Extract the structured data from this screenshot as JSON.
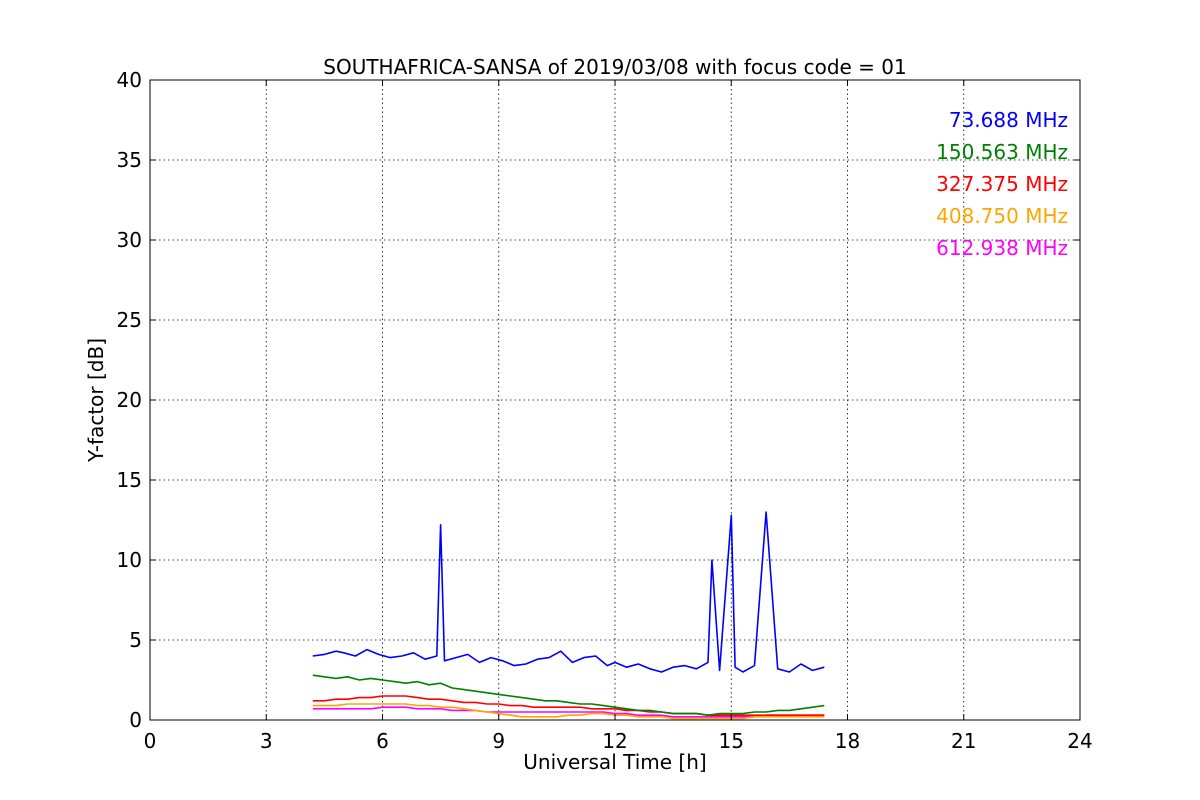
{
  "chart_data": {
    "type": "line",
    "title": "SOUTHAFRICA-SANSA of 2019/03/08 with focus code = 01",
    "xlabel": "Universal Time [h]",
    "ylabel": "Y-factor [dB]",
    "xlim": [
      0,
      24
    ],
    "ylim": [
      0,
      40
    ],
    "xticks": [
      0,
      3,
      6,
      9,
      12,
      15,
      18,
      21,
      24
    ],
    "yticks": [
      0,
      5,
      10,
      15,
      20,
      25,
      30,
      35,
      40
    ],
    "grid": true,
    "legend_position": "top-right",
    "series": [
      {
        "name": "73.688 MHz",
        "color": "#0000ff",
        "x": [
          4.2,
          4.5,
          4.8,
          5.0,
          5.3,
          5.6,
          5.9,
          6.2,
          6.5,
          6.8,
          7.1,
          7.4,
          7.5,
          7.6,
          7.9,
          8.2,
          8.5,
          8.8,
          9.1,
          9.4,
          9.7,
          10.0,
          10.3,
          10.6,
          10.9,
          11.2,
          11.5,
          11.8,
          12.0,
          12.3,
          12.6,
          12.9,
          13.2,
          13.5,
          13.8,
          14.1,
          14.4,
          14.5,
          14.7,
          15.0,
          15.1,
          15.3,
          15.6,
          15.9,
          16.2,
          16.5,
          16.8,
          17.1,
          17.4
        ],
        "values": [
          4.0,
          4.1,
          4.3,
          4.2,
          4.0,
          4.4,
          4.1,
          3.9,
          4.0,
          4.2,
          3.8,
          4.0,
          12.2,
          3.7,
          3.9,
          4.1,
          3.6,
          3.9,
          3.7,
          3.4,
          3.5,
          3.8,
          3.9,
          4.3,
          3.6,
          3.9,
          4.0,
          3.4,
          3.6,
          3.3,
          3.5,
          3.2,
          3.0,
          3.3,
          3.4,
          3.2,
          3.6,
          10.0,
          3.1,
          12.8,
          3.3,
          3.0,
          3.4,
          13.0,
          3.2,
          3.0,
          3.5,
          3.1,
          3.3
        ]
      },
      {
        "name": "150.563 MHz",
        "color": "#008000",
        "x": [
          4.2,
          4.5,
          4.8,
          5.1,
          5.4,
          5.7,
          6.0,
          6.3,
          6.6,
          6.9,
          7.2,
          7.5,
          7.8,
          8.1,
          8.4,
          8.7,
          9.0,
          9.3,
          9.6,
          9.9,
          10.2,
          10.5,
          10.8,
          11.1,
          11.4,
          11.7,
          12.0,
          12.3,
          12.6,
          12.9,
          13.2,
          13.5,
          13.8,
          14.1,
          14.4,
          14.7,
          15.0,
          15.3,
          15.6,
          15.9,
          16.2,
          16.5,
          16.8,
          17.1,
          17.4
        ],
        "values": [
          2.8,
          2.7,
          2.6,
          2.7,
          2.5,
          2.6,
          2.5,
          2.4,
          2.3,
          2.4,
          2.2,
          2.3,
          2.0,
          1.9,
          1.8,
          1.7,
          1.6,
          1.5,
          1.4,
          1.3,
          1.2,
          1.2,
          1.1,
          1.0,
          1.0,
          0.9,
          0.8,
          0.7,
          0.6,
          0.6,
          0.5,
          0.4,
          0.4,
          0.4,
          0.3,
          0.4,
          0.4,
          0.4,
          0.5,
          0.5,
          0.6,
          0.6,
          0.7,
          0.8,
          0.9
        ]
      },
      {
        "name": "327.375 MHz",
        "color": "#ff0000",
        "x": [
          4.2,
          4.5,
          4.8,
          5.1,
          5.4,
          5.7,
          6.0,
          6.3,
          6.6,
          6.9,
          7.2,
          7.5,
          7.8,
          8.1,
          8.4,
          8.7,
          9.0,
          9.3,
          9.6,
          9.9,
          10.2,
          10.5,
          10.8,
          11.1,
          11.4,
          11.7,
          12.0,
          12.3,
          12.6,
          12.9,
          13.2,
          13.5,
          13.8,
          14.1,
          14.4,
          14.7,
          15.0,
          15.3,
          15.6,
          15.9,
          16.2,
          16.5,
          16.8,
          17.1,
          17.4
        ],
        "values": [
          1.2,
          1.2,
          1.3,
          1.3,
          1.4,
          1.4,
          1.5,
          1.5,
          1.5,
          1.4,
          1.3,
          1.3,
          1.2,
          1.1,
          1.1,
          1.0,
          1.0,
          0.9,
          0.9,
          0.8,
          0.8,
          0.8,
          0.8,
          0.8,
          0.7,
          0.7,
          0.7,
          0.6,
          0.6,
          0.5,
          0.5,
          0.4,
          0.4,
          0.4,
          0.3,
          0.3,
          0.3,
          0.3,
          0.3,
          0.3,
          0.3,
          0.3,
          0.3,
          0.3,
          0.3
        ]
      },
      {
        "name": "408.750 MHz",
        "color": "#ffa500",
        "x": [
          4.2,
          4.5,
          4.8,
          5.1,
          5.4,
          5.7,
          6.0,
          6.3,
          6.6,
          6.9,
          7.2,
          7.5,
          7.8,
          8.1,
          8.4,
          8.7,
          9.0,
          9.3,
          9.6,
          9.9,
          10.2,
          10.5,
          10.8,
          11.1,
          11.4,
          11.7,
          12.0,
          12.3,
          12.6,
          12.9,
          13.2,
          13.5,
          13.8,
          14.1,
          14.4,
          14.7,
          15.0,
          15.3,
          15.6,
          15.9,
          16.2,
          16.5,
          16.8,
          17.1,
          17.4
        ],
        "values": [
          0.9,
          0.9,
          0.9,
          1.0,
          1.0,
          1.0,
          1.0,
          1.0,
          1.0,
          0.9,
          0.9,
          0.8,
          0.8,
          0.7,
          0.6,
          0.5,
          0.4,
          0.3,
          0.2,
          0.2,
          0.2,
          0.2,
          0.3,
          0.3,
          0.4,
          0.4,
          0.3,
          0.3,
          0.2,
          0.2,
          0.2,
          0.1,
          0.1,
          0.1,
          0.1,
          0.1,
          0.1,
          0.1,
          0.2,
          0.2,
          0.2,
          0.2,
          0.2,
          0.2,
          0.2
        ]
      },
      {
        "name": "612.938 MHz",
        "color": "#ff00ff",
        "x": [
          4.2,
          4.5,
          4.8,
          5.1,
          5.4,
          5.7,
          6.0,
          6.3,
          6.6,
          6.9,
          7.2,
          7.5,
          7.8,
          8.1,
          8.4,
          8.7,
          9.0,
          9.3,
          9.6,
          9.9,
          10.2,
          10.5,
          10.8,
          11.1,
          11.4,
          11.7,
          12.0,
          12.3,
          12.6,
          12.9,
          13.2,
          13.5,
          13.8,
          14.1,
          14.4,
          14.7,
          15.0,
          15.3,
          15.6,
          15.9,
          16.2,
          16.5,
          16.8,
          17.1,
          17.4
        ],
        "values": [
          0.7,
          0.7,
          0.7,
          0.7,
          0.7,
          0.7,
          0.8,
          0.8,
          0.8,
          0.7,
          0.7,
          0.7,
          0.6,
          0.6,
          0.6,
          0.5,
          0.5,
          0.5,
          0.5,
          0.5,
          0.5,
          0.5,
          0.5,
          0.5,
          0.5,
          0.5,
          0.4,
          0.4,
          0.3,
          0.3,
          0.3,
          0.2,
          0.2,
          0.2,
          0.2,
          0.2,
          0.2,
          0.2,
          0.2,
          0.3,
          0.3,
          0.3,
          0.3,
          0.3,
          0.3
        ]
      }
    ]
  }
}
